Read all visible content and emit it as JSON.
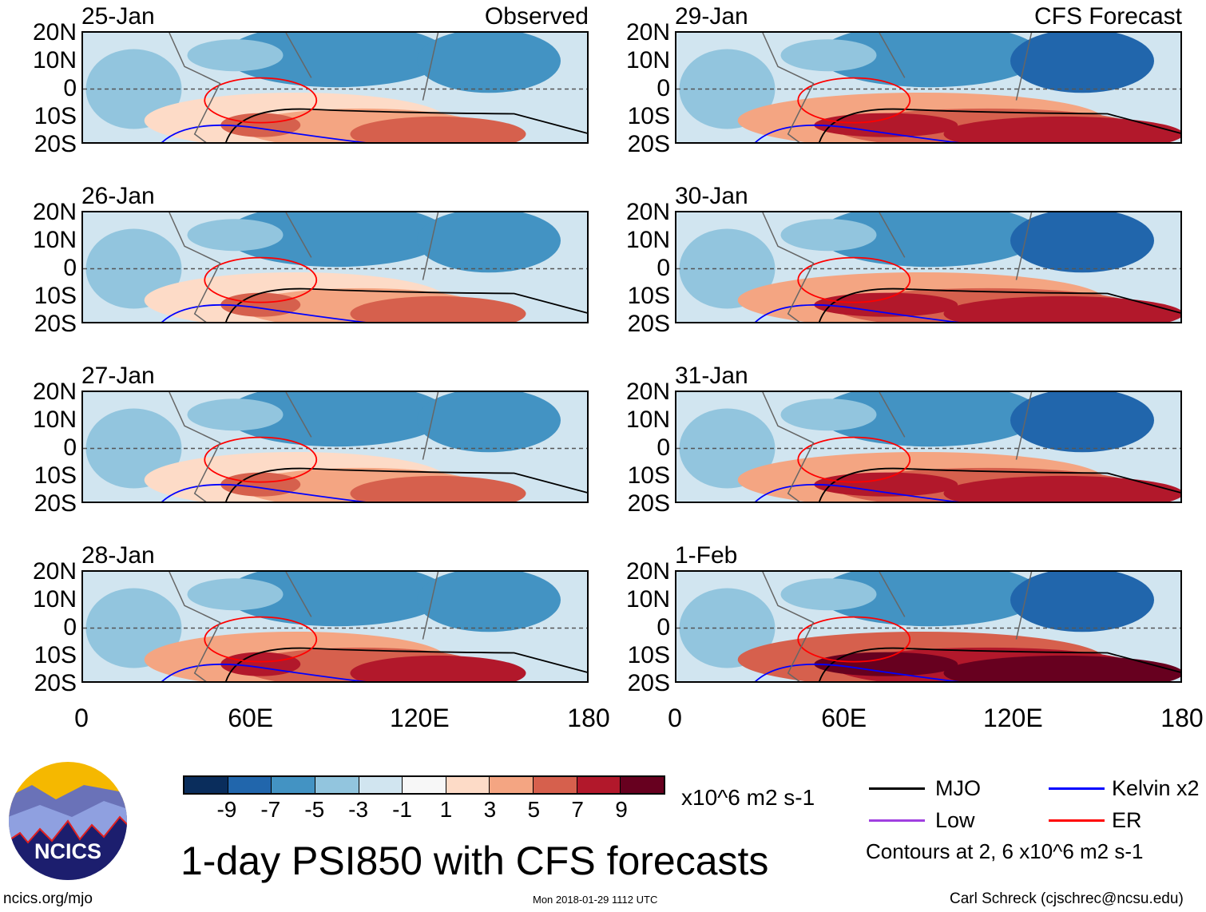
{
  "title": "1-day PSI850 with CFS forecasts",
  "footer": {
    "url": "ncics.org/mjo",
    "timestamp": "Mon 2018-01-29 1112 UTC",
    "author": "Carl Schreck (cjschrec@ncsu.edu)",
    "logo_text": "NCICS"
  },
  "legend": {
    "mjo": "MJO",
    "kelvin": "Kelvin x2",
    "low": "Low",
    "er": "ER",
    "contours_note": "Contours at 2, 6 x10^6 m2 s-1",
    "colors": {
      "mjo": "#000000",
      "kelvin": "#0000ff",
      "low": "#a040e0",
      "er": "#ff0000"
    }
  },
  "chart_data": {
    "type": "heatmap",
    "title": "1-day PSI850 with CFS forecasts",
    "variable": "PSI850 anomaly",
    "units": "x10^6 m2 s-1",
    "column_labels": [
      "Observed",
      "CFS Forecast"
    ],
    "panels": [
      {
        "date": "25-Jan",
        "column": "Observed"
      },
      {
        "date": "26-Jan",
        "column": "Observed"
      },
      {
        "date": "27-Jan",
        "column": "Observed"
      },
      {
        "date": "28-Jan",
        "column": "Observed"
      },
      {
        "date": "29-Jan",
        "column": "CFS Forecast"
      },
      {
        "date": "30-Jan",
        "column": "CFS Forecast"
      },
      {
        "date": "31-Jan",
        "column": "CFS Forecast"
      },
      {
        "date": "1-Feb",
        "column": "CFS Forecast"
      }
    ],
    "lat_ticks": [
      "20N",
      "10N",
      "0",
      "10S",
      "20S"
    ],
    "lon_ticks": [
      "0",
      "60E",
      "120E",
      "180"
    ],
    "xlim": [
      0,
      180
    ],
    "ylim": [
      -20,
      20
    ],
    "colorbar": {
      "labels": [
        "-9",
        "-7",
        "-5",
        "-3",
        "-1",
        "1",
        "3",
        "5",
        "7",
        "9"
      ],
      "colors": [
        "#0a2d5c",
        "#2166ac",
        "#4393c3",
        "#92c5de",
        "#d1e5f0",
        "#f7f7f7",
        "#fddbc7",
        "#f4a582",
        "#d6604d",
        "#b2182b",
        "#67001f"
      ]
    }
  }
}
